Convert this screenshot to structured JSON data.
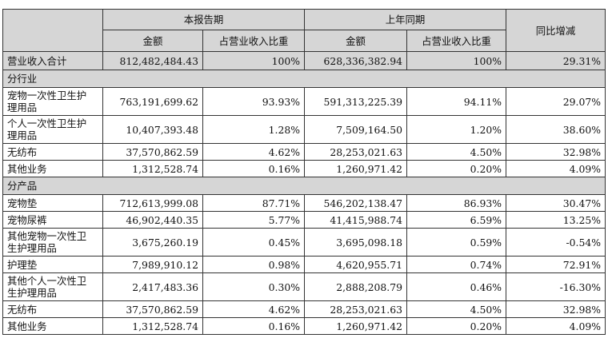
{
  "header": {
    "current_period": "本报告期",
    "prior_period": "上年同期",
    "yoy_change": "同比增减",
    "amount": "金额",
    "share_of_revenue": "占营业收入比重"
  },
  "total": {
    "label": "营业收入合计",
    "cur_amount": "812,482,484.43",
    "cur_pct": "100%",
    "prev_amount": "628,336,382.94",
    "prev_pct": "100%",
    "yoy": "29.31%"
  },
  "by_industry": {
    "title": "分行业",
    "rows": [
      {
        "label": "宠物一次性卫生护理用品",
        "cur_amount": "763,191,699.62",
        "cur_pct": "93.93%",
        "prev_amount": "591,313,225.39",
        "prev_pct": "94.11%",
        "yoy": "29.07%"
      },
      {
        "label": "个人一次性卫生护理用品",
        "cur_amount": "10,407,393.48",
        "cur_pct": "1.28%",
        "prev_amount": "7,509,164.50",
        "prev_pct": "1.20%",
        "yoy": "38.60%"
      },
      {
        "label": "无纺布",
        "cur_amount": "37,570,862.59",
        "cur_pct": "4.62%",
        "prev_amount": "28,253,021.63",
        "prev_pct": "4.50%",
        "yoy": "32.98%"
      },
      {
        "label": "其他业务",
        "cur_amount": "1,312,528.74",
        "cur_pct": "0.16%",
        "prev_amount": "1,260,971.42",
        "prev_pct": "0.20%",
        "yoy": "4.09%"
      }
    ]
  },
  "by_product": {
    "title": "分产品",
    "rows": [
      {
        "label": "宠物垫",
        "cur_amount": "712,613,999.08",
        "cur_pct": "87.71%",
        "prev_amount": "546,202,138.47",
        "prev_pct": "86.93%",
        "yoy": "30.47%"
      },
      {
        "label": "宠物尿裤",
        "cur_amount": "46,902,440.35",
        "cur_pct": "5.77%",
        "prev_amount": "41,415,988.74",
        "prev_pct": "6.59%",
        "yoy": "13.25%"
      },
      {
        "label": "其他宠物一次性卫生护理用品",
        "cur_amount": "3,675,260.19",
        "cur_pct": "0.45%",
        "prev_amount": "3,695,098.18",
        "prev_pct": "0.59%",
        "yoy": "-0.54%"
      },
      {
        "label": "护理垫",
        "cur_amount": "7,989,910.12",
        "cur_pct": "0.98%",
        "prev_amount": "4,620,955.71",
        "prev_pct": "0.74%",
        "yoy": "72.91%"
      },
      {
        "label": "其他个人一次性卫生护理用品",
        "cur_amount": "2,417,483.36",
        "cur_pct": "0.30%",
        "prev_amount": "2,888,208.79",
        "prev_pct": "0.46%",
        "yoy": "-16.30%"
      },
      {
        "label": "无纺布",
        "cur_amount": "37,570,862.59",
        "cur_pct": "4.62%",
        "prev_amount": "28,253,021.63",
        "prev_pct": "4.50%",
        "yoy": "32.98%"
      },
      {
        "label": "其他业务",
        "cur_amount": "1,312,528.74",
        "cur_pct": "0.16%",
        "prev_amount": "1,260,971.42",
        "prev_pct": "0.20%",
        "yoy": "4.09%"
      }
    ]
  }
}
